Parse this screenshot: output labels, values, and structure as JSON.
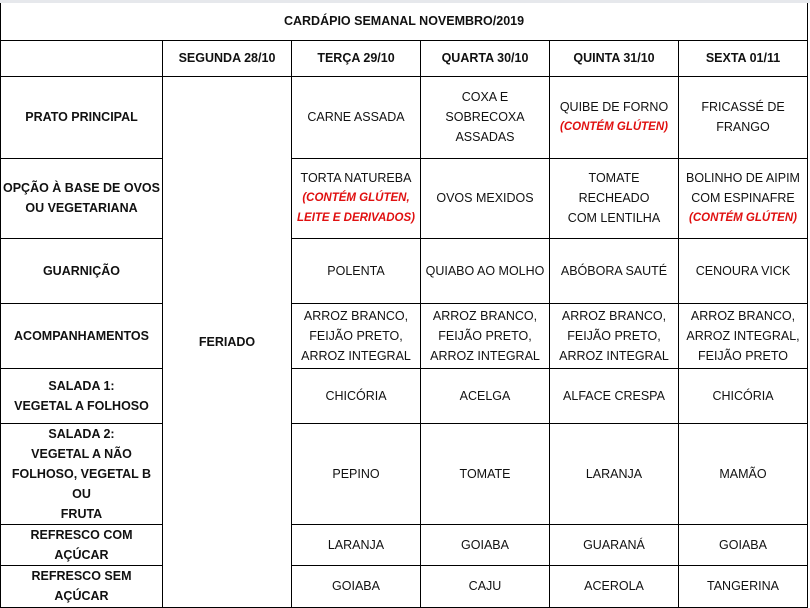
{
  "title": "CARDÁPIO SEMANAL NOVEMBRO/2019",
  "colors": {
    "allergen_note": "#e01010",
    "border": "#000000"
  },
  "days": [
    "SEGUNDA 28/10",
    "TERÇA 29/10",
    "QUARTA 30/10",
    "QUINTA 31/10",
    "SEXTA 01/11"
  ],
  "holiday_label": "FERIADO",
  "rows": [
    {
      "label": "PRATO PRINCIPAL",
      "cells": [
        {
          "main": "CARNE ASSADA",
          "note": ""
        },
        {
          "main": "COXA E SOBRECOXA\nASSADAS",
          "note": ""
        },
        {
          "main": "QUIBE DE FORNO",
          "note": "(CONTÉM GLÚTEN)"
        },
        {
          "main": "FRICASSÉ DE\nFRANGO",
          "note": ""
        }
      ]
    },
    {
      "label": "OPÇÃO À BASE DE OVOS\nOU VEGETARIANA",
      "cells": [
        {
          "main": "TORTA NATUREBA",
          "note": "(CONTÉM GLÚTEN,\nLEITE E DERIVADOS)"
        },
        {
          "main": "OVOS MEXIDOS",
          "note": ""
        },
        {
          "main": "TOMATE RECHEADO\nCOM LENTILHA",
          "note": ""
        },
        {
          "main": "BOLINHO DE AIPIM\nCOM ESPINAFRE",
          "note": "(CONTÉM GLÚTEN)"
        }
      ]
    },
    {
      "label": "GUARNIÇÃO",
      "cells": [
        {
          "main": "POLENTA",
          "note": ""
        },
        {
          "main": "QUIABO AO MOLHO",
          "note": ""
        },
        {
          "main": "ABÓBORA SAUTÉ",
          "note": ""
        },
        {
          "main": "CENOURA VICK",
          "note": ""
        }
      ]
    },
    {
      "label": "ACOMPANHAMENTOS",
      "cells": [
        {
          "main": "ARROZ BRANCO,\nFEIJÃO PRETO,\nARROZ INTEGRAL",
          "note": ""
        },
        {
          "main": "ARROZ BRANCO,\nFEIJÃO PRETO,\nARROZ INTEGRAL",
          "note": ""
        },
        {
          "main": "ARROZ BRANCO,\nFEIJÃO PRETO,\nARROZ INTEGRAL",
          "note": ""
        },
        {
          "main": "ARROZ BRANCO,\nARROZ INTEGRAL,\nFEIJÃO PRETO",
          "note": ""
        }
      ]
    },
    {
      "label": "SALADA 1:\nVEGETAL A FOLHOSO",
      "cells": [
        {
          "main": "CHICÓRIA",
          "note": ""
        },
        {
          "main": "ACELGA",
          "note": ""
        },
        {
          "main": "ALFACE CRESPA",
          "note": ""
        },
        {
          "main": "CHICÓRIA",
          "note": ""
        }
      ]
    },
    {
      "label": "SALADA 2:\nVEGETAL A NÃO\nFOLHOSO, VEGETAL B OU\nFRUTA",
      "cells": [
        {
          "main": "PEPINO",
          "note": ""
        },
        {
          "main": "TOMATE",
          "note": ""
        },
        {
          "main": "LARANJA",
          "note": ""
        },
        {
          "main": "MAMÃO",
          "note": ""
        }
      ]
    },
    {
      "label": "REFRESCO COM AÇÚCAR",
      "cells": [
        {
          "main": "LARANJA",
          "note": ""
        },
        {
          "main": "GOIABA",
          "note": ""
        },
        {
          "main": "GUARANÁ",
          "note": ""
        },
        {
          "main": "GOIABA",
          "note": ""
        }
      ]
    },
    {
      "label": "REFRESCO SEM AÇÚCAR",
      "cells": [
        {
          "main": "GOIABA",
          "note": ""
        },
        {
          "main": "CAJU",
          "note": ""
        },
        {
          "main": "ACEROLA",
          "note": ""
        },
        {
          "main": "TANGERINA",
          "note": ""
        }
      ]
    }
  ]
}
